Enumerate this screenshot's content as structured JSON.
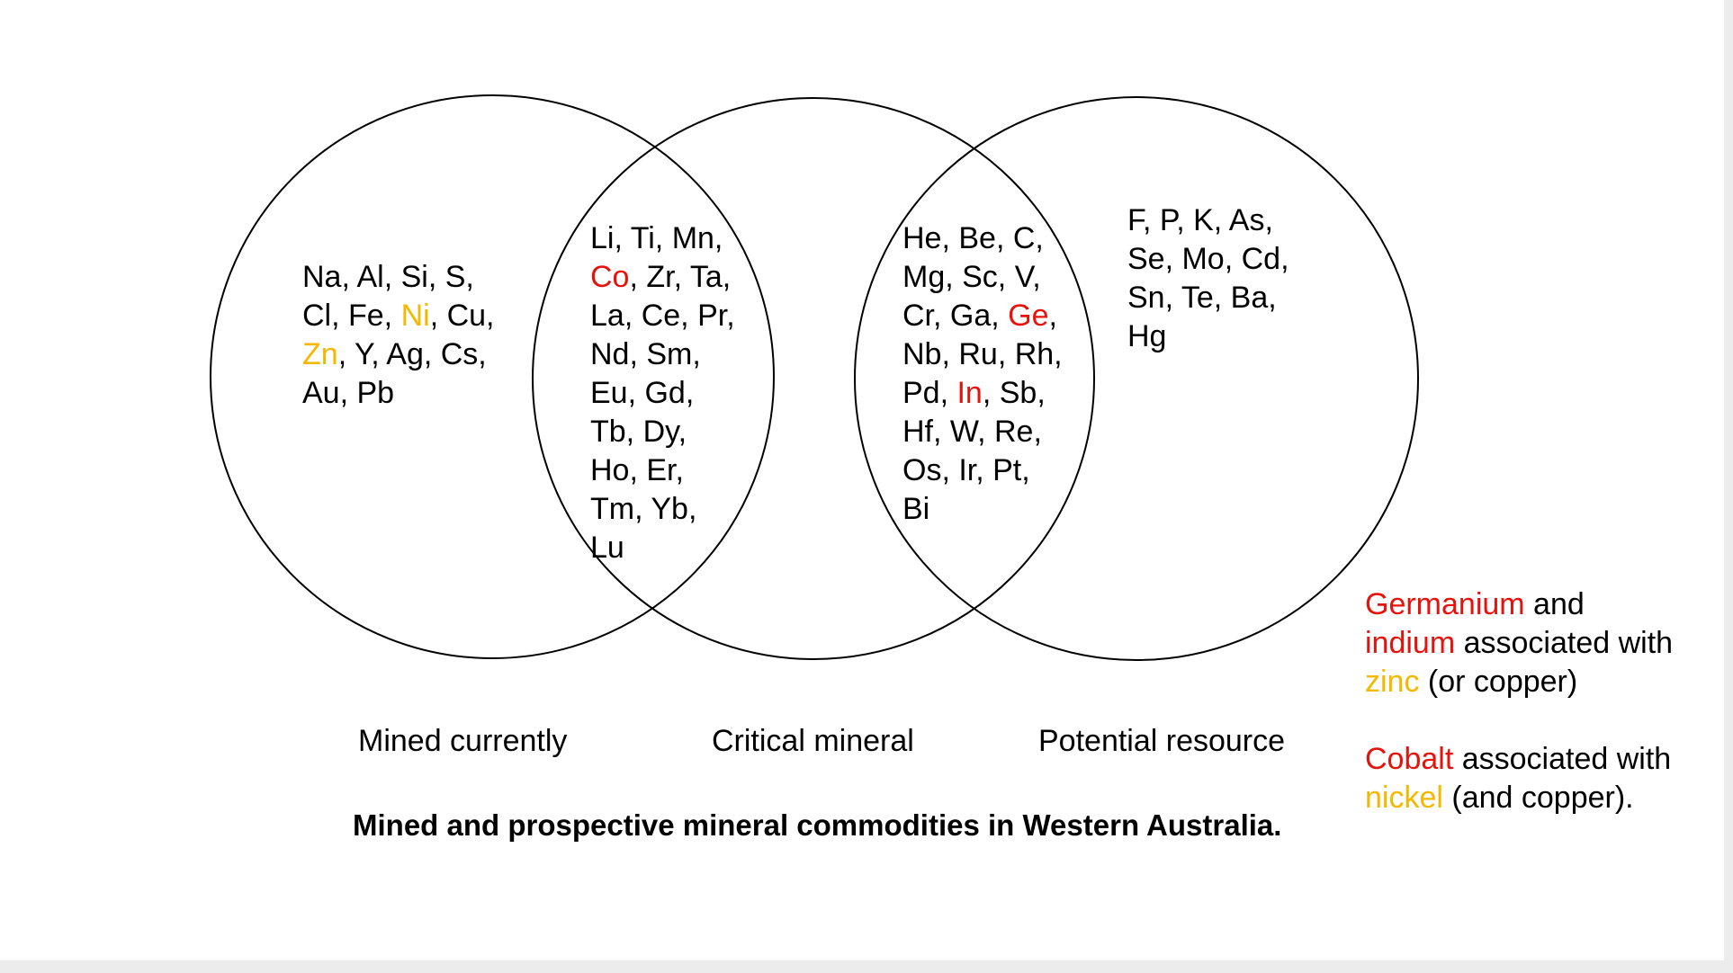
{
  "colors": {
    "highlight_red": "#e8120c",
    "highlight_orange": "#f5b800",
    "text": "#000000",
    "line": "#000000"
  },
  "regions": {
    "mined_only": [
      [
        {
          "t": "Na, Al, Si, S,"
        }
      ],
      [
        {
          "t": "Cl, Fe, "
        },
        {
          "t": "Ni",
          "c": "orange"
        },
        {
          "t": ", Cu,"
        }
      ],
      [
        {
          "t": "Zn",
          "c": "orange"
        },
        {
          "t": ", Y, Ag, Cs,"
        }
      ],
      [
        {
          "t": "Au, Pb"
        }
      ]
    ],
    "mined_and_critical": [
      [
        {
          "t": "Li, Ti, Mn,"
        }
      ],
      [
        {
          "t": "Co",
          "c": "red"
        },
        {
          "t": ", Zr, Ta,"
        }
      ],
      [
        {
          "t": "La, Ce, Pr,"
        }
      ],
      [
        {
          "t": "Nd, Sm,"
        }
      ],
      [
        {
          "t": "Eu, Gd,"
        }
      ],
      [
        {
          "t": "Tb, Dy,"
        }
      ],
      [
        {
          "t": "Ho, Er,"
        }
      ],
      [
        {
          "t": "Tm, Yb,"
        }
      ],
      [
        {
          "t": "Lu"
        }
      ]
    ],
    "critical_and_potential": [
      [
        {
          "t": "He, Be, C,"
        }
      ],
      [
        {
          "t": "Mg, Sc, V,"
        }
      ],
      [
        {
          "t": "Cr, Ga, "
        },
        {
          "t": "Ge",
          "c": "red"
        },
        {
          "t": ","
        }
      ],
      [
        {
          "t": "Nb, Ru, Rh,"
        }
      ],
      [
        {
          "t": "Pd, "
        },
        {
          "t": "In",
          "c": "red"
        },
        {
          "t": ", Sb,"
        }
      ],
      [
        {
          "t": "Hf, W, Re,"
        }
      ],
      [
        {
          "t": "Os, Ir, Pt,"
        }
      ],
      [
        {
          "t": "Bi"
        }
      ]
    ],
    "potential_only": [
      [
        {
          "t": "F, P, K, As,"
        }
      ],
      [
        {
          "t": "Se, Mo, Cd,"
        }
      ],
      [
        {
          "t": "Sn, Te, Ba,"
        }
      ],
      [
        {
          "t": "Hg"
        }
      ]
    ]
  },
  "captions": {
    "mined": "Mined currently",
    "critical": "Critical mineral",
    "potential": "Potential resource"
  },
  "title": "Mined and prospective mineral commodities in Western Australia.",
  "notes": {
    "germanium": [
      [
        {
          "t": "Germanium",
          "c": "red"
        },
        {
          "t": " and"
        }
      ],
      [
        {
          "t": "indium",
          "c": "red"
        },
        {
          "t": " associated with"
        }
      ],
      [
        {
          "t": "zinc",
          "c": "orange"
        },
        {
          "t": " (or copper)"
        }
      ]
    ],
    "cobalt": [
      [
        {
          "t": "Cobalt",
          "c": "red"
        },
        {
          "t": " associated with"
        }
      ],
      [
        {
          "t": "nickel",
          "c": "orange"
        },
        {
          "t": " (and copper)."
        }
      ]
    ]
  }
}
